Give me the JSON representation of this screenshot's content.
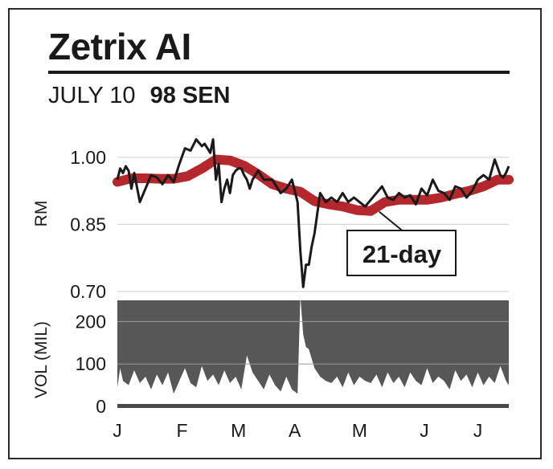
{
  "header": {
    "title": "Zetrix AI",
    "date": "JULY 10",
    "price": "98 SEN"
  },
  "chart_data": [
    {
      "type": "line",
      "title": "Zetrix AI",
      "ylabel": "RM",
      "ylim": [
        0.7,
        1.05
      ],
      "yticks": [
        "1.00",
        "0.85",
        "0.70"
      ],
      "ytick_values": [
        1.0,
        0.85,
        0.7
      ],
      "grid": true,
      "annotation": "21-day",
      "series": [
        {
          "name": "21-day",
          "color": "#b3272d",
          "x": [
            0,
            5,
            10,
            15,
            20,
            25,
            30,
            35,
            40,
            45,
            50,
            55,
            60,
            65,
            70,
            75,
            80,
            85,
            90,
            95,
            100,
            105,
            110,
            115,
            120,
            125,
            130,
            135,
            139
          ],
          "values": [
            0.945,
            0.953,
            0.953,
            0.952,
            0.952,
            0.958,
            0.975,
            0.995,
            0.993,
            0.981,
            0.962,
            0.94,
            0.93,
            0.923,
            0.902,
            0.895,
            0.89,
            0.882,
            0.88,
            0.9,
            0.905,
            0.905,
            0.905,
            0.91,
            0.918,
            0.925,
            0.935,
            0.95,
            0.95
          ]
        },
        {
          "name": "price",
          "color": "#1a1a1a",
          "x": [
            0,
            1,
            2,
            3,
            4,
            5,
            6,
            8,
            10,
            12,
            14,
            16,
            18,
            20,
            22,
            24,
            26,
            28,
            30,
            31,
            32,
            33,
            34,
            35,
            36,
            37,
            38,
            39,
            40,
            41,
            42,
            43,
            44,
            45,
            46,
            47,
            48,
            50,
            52,
            55,
            58,
            60,
            62,
            64,
            65,
            66,
            67,
            68,
            69,
            70,
            72,
            74,
            76,
            78,
            80,
            82,
            84,
            86,
            88,
            90,
            92,
            94,
            96,
            98,
            100,
            102,
            104,
            106,
            108,
            110,
            112,
            114,
            116,
            118,
            120,
            122,
            124,
            126,
            128,
            130,
            132,
            134,
            136,
            137,
            138,
            139
          ],
          "values": [
            0.95,
            0.975,
            0.965,
            0.98,
            0.97,
            0.93,
            0.965,
            0.9,
            0.93,
            0.96,
            0.955,
            0.94,
            0.96,
            0.945,
            0.985,
            1.02,
            1.015,
            1.04,
            1.025,
            1.03,
            1.02,
            1.01,
            1.04,
            0.95,
            0.985,
            0.9,
            0.93,
            0.95,
            0.92,
            0.96,
            0.97,
            0.975,
            0.975,
            0.96,
            0.95,
            0.93,
            0.95,
            0.97,
            0.95,
            0.95,
            0.92,
            0.93,
            0.95,
            0.9,
            0.79,
            0.71,
            0.76,
            0.76,
            0.8,
            0.83,
            0.92,
            0.9,
            0.91,
            0.9,
            0.92,
            0.9,
            0.91,
            0.9,
            0.89,
            0.905,
            0.92,
            0.935,
            0.91,
            0.905,
            0.92,
            0.91,
            0.915,
            0.895,
            0.93,
            0.915,
            0.95,
            0.925,
            0.92,
            0.905,
            0.935,
            0.93,
            0.91,
            0.925,
            0.95,
            0.96,
            0.95,
            0.995,
            0.96,
            0.955,
            0.965,
            0.98
          ]
        }
      ]
    },
    {
      "type": "area",
      "ylabel": "VOL (MIL)",
      "ylim": [
        0,
        250
      ],
      "yticks": [
        "200",
        "100",
        "0"
      ],
      "ytick_values": [
        200,
        100,
        0
      ],
      "grid": true,
      "categories": [
        "J",
        "F",
        "M",
        "A",
        "M",
        "J",
        "J"
      ],
      "series": [
        {
          "name": "volume",
          "color": "#4d4d4d",
          "x": [
            0,
            1,
            2,
            4,
            6,
            8,
            10,
            12,
            14,
            16,
            18,
            20,
            22,
            24,
            26,
            28,
            30,
            32,
            34,
            36,
            38,
            40,
            42,
            44,
            46,
            48,
            50,
            52,
            54,
            56,
            58,
            60,
            62,
            64,
            65,
            66,
            67,
            68,
            70,
            72,
            74,
            76,
            78,
            80,
            82,
            84,
            86,
            88,
            90,
            92,
            94,
            96,
            98,
            100,
            102,
            104,
            106,
            108,
            110,
            112,
            114,
            116,
            118,
            120,
            122,
            124,
            126,
            128,
            130,
            132,
            134,
            136,
            138,
            139
          ],
          "values": [
            45,
            90,
            60,
            50,
            85,
            55,
            70,
            40,
            75,
            50,
            80,
            30,
            60,
            90,
            55,
            45,
            95,
            60,
            75,
            50,
            85,
            55,
            70,
            40,
            120,
            80,
            60,
            40,
            75,
            50,
            35,
            70,
            40,
            30,
            260,
            170,
            140,
            135,
            90,
            70,
            60,
            55,
            70,
            45,
            80,
            50,
            70,
            60,
            55,
            75,
            45,
            80,
            55,
            70,
            45,
            80,
            60,
            50,
            90,
            55,
            70,
            60,
            40,
            85,
            60,
            75,
            45,
            80,
            50,
            70,
            55,
            95,
            60,
            50
          ],
          "baseline": 0
        }
      ]
    }
  ],
  "xaxis": {
    "labels": [
      "J",
      "F",
      "M",
      "A",
      "M",
      "J",
      "J"
    ],
    "label_x": [
      0,
      23,
      43,
      63,
      86,
      109,
      128
    ],
    "xlim": [
      0,
      139
    ]
  }
}
